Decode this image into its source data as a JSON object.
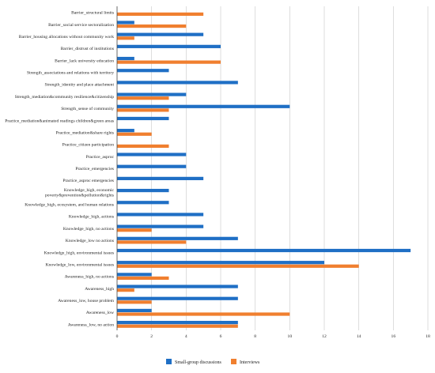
{
  "chart_data": {
    "type": "bar",
    "orientation": "horizontal",
    "categories": [
      "Barrier_structural limits",
      "Barrier_social service sectoralization",
      "Barrier_housing allocations without community work",
      "Barrier_distrust of institutions",
      "Barrier_lack university education",
      "Strength_associations and relations with territory",
      "Strength_identity and place attachment",
      "Strength_mediation&community resilience&citizenship",
      "Strength_sense of community",
      "Practice_mediation&animated readings children&green areas",
      "Practice_mediation&share rights",
      "Practice_citizen participation",
      "Practice_asproc",
      "Practice_emergencies",
      "Practice_asproc emergencies",
      [
        "Knowledge_high, economic",
        "poverty&prevention&pollution&rights"
      ],
      "Knowledge_high, ecosystem, and human relations",
      "Knowledge_high, actions",
      "Knowledge_high, no actions",
      "Knowledge_low no actions",
      "Knowledge_high, environmental issues",
      "Knowledge_low, environmental issues",
      "Awareness_high, no actions",
      "Awareness_high",
      "Awareness_low, house problem",
      "Awareness_low",
      "Awareness_low, no action"
    ],
    "series": [
      {
        "name": "Small-group discussions",
        "color": "#1f6fc5",
        "values": [
          0,
          1,
          5,
          6,
          1,
          3,
          7,
          4,
          10,
          3,
          1,
          0,
          4,
          4,
          5,
          3,
          3,
          5,
          5,
          7,
          17,
          12,
          2,
          7,
          7,
          2,
          7
        ]
      },
      {
        "name": "Interviews",
        "color": "#f07f2f",
        "values": [
          5,
          4,
          1,
          0,
          6,
          0,
          0,
          3,
          3,
          0,
          2,
          3,
          0,
          0,
          0,
          0,
          0,
          0,
          2,
          4,
          0,
          14,
          3,
          1,
          2,
          10,
          7
        ]
      }
    ],
    "xlim": [
      0,
      18
    ],
    "xticks": [
      0,
      2,
      4,
      6,
      8,
      10,
      12,
      14,
      16,
      18
    ],
    "grid": "vertical",
    "legend": "bottom"
  }
}
